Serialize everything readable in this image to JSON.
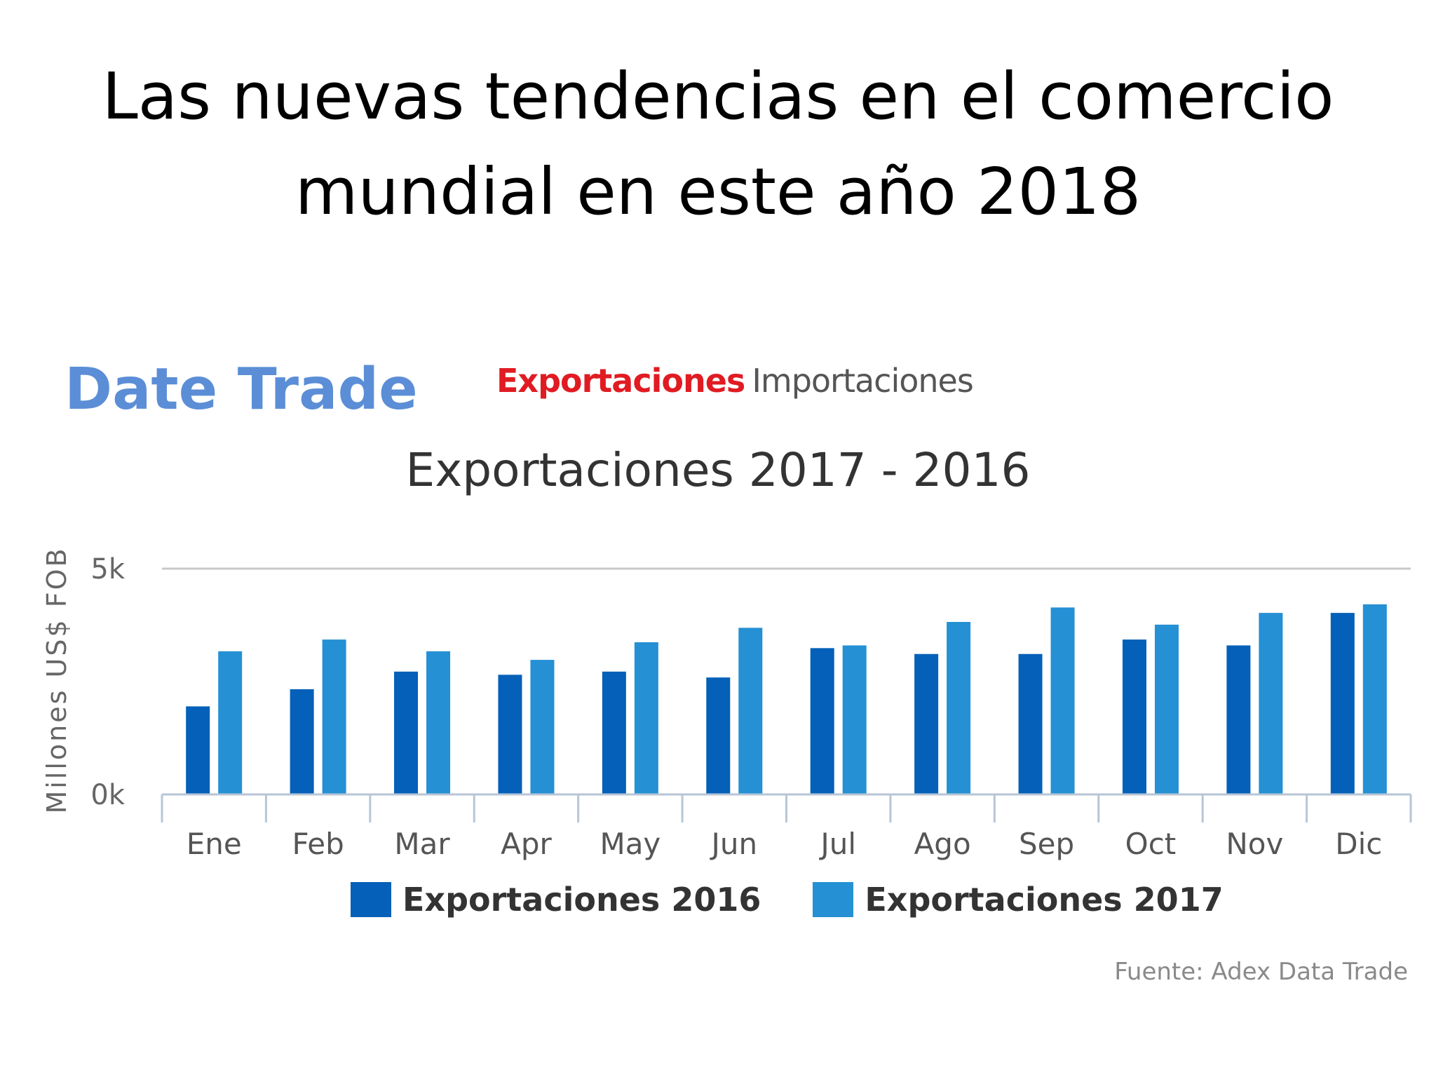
{
  "slide": {
    "title_line1": "Las nuevas tendencias en el comercio",
    "title_line2": "mundial en este año 2018",
    "brand": "Date Trade"
  },
  "tabs": {
    "active_label": "Exportaciones",
    "inactive_label": "Importaciones"
  },
  "colors": {
    "series_2016": "#0460b8",
    "series_2017": "#2590d4",
    "brand": "#5b8ed6",
    "active_tab": "#e11b22"
  },
  "chart_data": {
    "type": "bar",
    "title": "Exportaciones 2017 - 2016",
    "ylabel": "Millones US$ FOB",
    "xlabel": "",
    "ylim": [
      0,
      5000
    ],
    "yticks": [
      {
        "value": 0,
        "label": "0k"
      },
      {
        "value": 5000,
        "label": "5k"
      }
    ],
    "categories": [
      "Ene",
      "Feb",
      "Mar",
      "Apr",
      "May",
      "Jun",
      "Jul",
      "Ago",
      "Sep",
      "Oct",
      "Nov",
      "Dic"
    ],
    "series": [
      {
        "name": "Exportaciones 2016",
        "values": [
          1950,
          2330,
          2720,
          2650,
          2720,
          2590,
          3240,
          3110,
          3110,
          3430,
          3300,
          4020
        ]
      },
      {
        "name": "Exportaciones 2017",
        "values": [
          3170,
          3430,
          3170,
          2980,
          3370,
          3690,
          3300,
          3820,
          4140,
          3760,
          4020,
          4210
        ]
      }
    ],
    "grid": false,
    "legend_position": "bottom-center",
    "source": "Fuente: Adex Data Trade"
  }
}
